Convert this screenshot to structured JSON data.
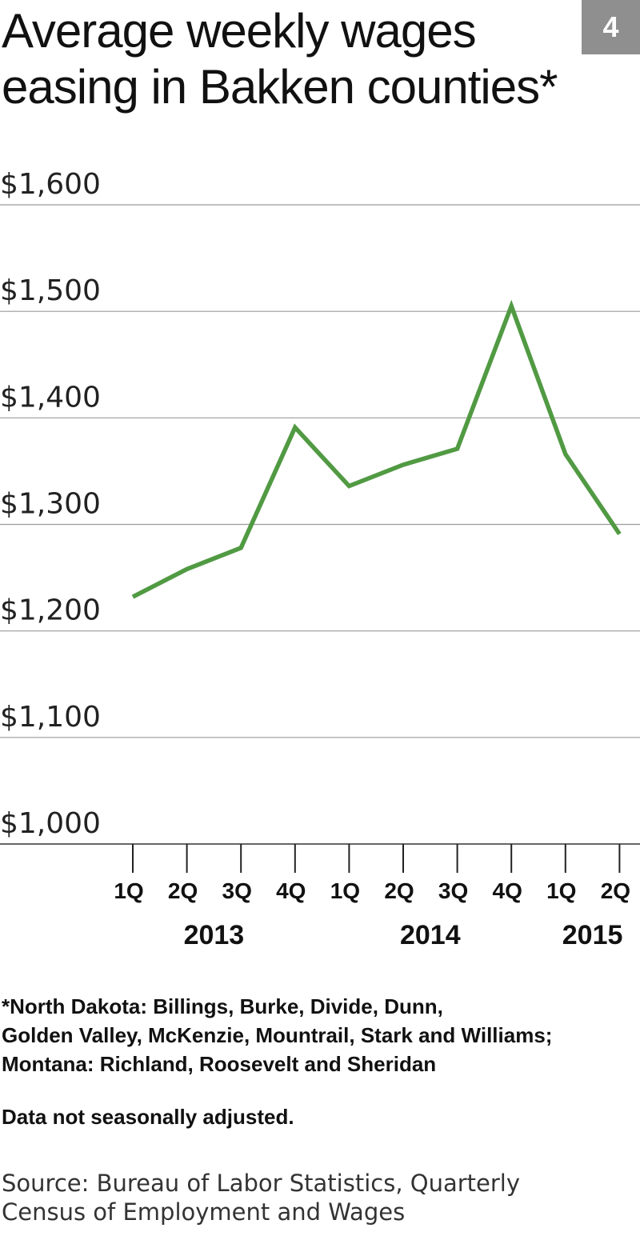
{
  "header": {
    "title_lines": [
      "Average weekly wages",
      "easing in Bakken counties*"
    ],
    "badge": "4"
  },
  "chart_data": {
    "type": "line",
    "title": "Average weekly wages easing in Bakken counties*",
    "xlabel": "",
    "ylabel": "",
    "ylim": [
      1000,
      1600
    ],
    "yticks": [
      "$1,600",
      "$1,500",
      "$1,400",
      "$1,300",
      "$1,200",
      "$1,100",
      "$1,000"
    ],
    "ytick_values": [
      1600,
      1500,
      1400,
      1300,
      1200,
      1100,
      1000
    ],
    "grid": true,
    "categories": [
      "1Q",
      "2Q",
      "3Q",
      "4Q",
      "1Q",
      "2Q",
      "3Q",
      "4Q",
      "1Q",
      "2Q"
    ],
    "years": [
      {
        "label": "2013",
        "span": [
          0,
          3
        ]
      },
      {
        "label": "2014",
        "span": [
          4,
          7
        ]
      },
      {
        "label": "2015",
        "span": [
          8,
          9
        ]
      }
    ],
    "series": [
      {
        "values": [
          1232,
          1258,
          1278,
          1391,
          1336,
          1356,
          1371,
          1505,
          1366,
          1291
        ],
        "color": "#519a43"
      }
    ]
  },
  "notes": {
    "footnote_lines": [
      "*North Dakota: Billings, Burke, Divide, Dunn,",
      "Golden Valley, McKenzie, Mountrail, Stark and Williams;",
      "Montana: Richland, Roosevelt and Sheridan"
    ],
    "adjustment": "Data not seasonally adjusted."
  },
  "source": {
    "lines": [
      "Source: Bureau of Labor Statistics, Quarterly",
      "Census of Employment and Wages"
    ]
  },
  "colors": {
    "line": "#519a43",
    "grid": "#9a9a9a",
    "axis": "#333333",
    "badge_bg": "#8f8f8f"
  }
}
